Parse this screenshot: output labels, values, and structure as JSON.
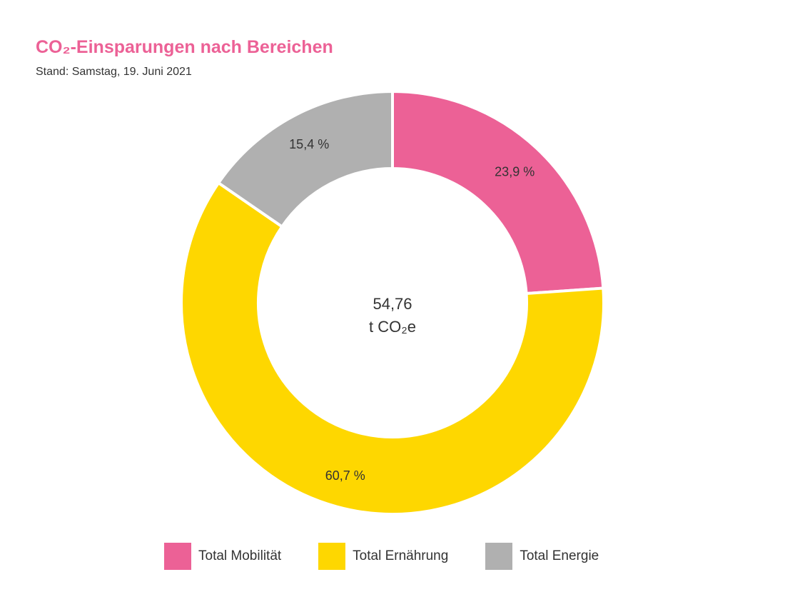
{
  "chart_data": {
    "type": "pie",
    "title": "CO₂-Einsparungen nach Bereichen",
    "subtitle": "Stand: Samstag, 19. Juni 2021",
    "center_value": "54,76",
    "center_unit": "t CO₂e",
    "colors": {
      "title": "#ec6196"
    },
    "slices": [
      {
        "label": "Total Mobilität",
        "value": 23.9,
        "display": "23,9 %",
        "color": "#ec6196"
      },
      {
        "label": "Total Ernährung",
        "value": 60.7,
        "display": "60,7 %",
        "color": "#fed700"
      },
      {
        "label": "Total Energie",
        "value": 15.4,
        "display": "15,4 %",
        "color": "#b0b0b0"
      }
    ],
    "legend_position": "bottom"
  }
}
